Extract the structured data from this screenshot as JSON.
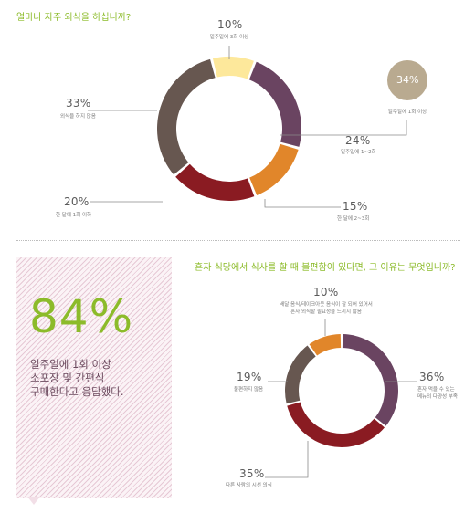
{
  "colors": {
    "purple": "#6a4461",
    "brown": "#675750",
    "darkred": "#8a1b22",
    "orange": "#e1862a",
    "yellow": "#fde89b",
    "olive": "#b9aa90",
    "green": "#8cbb2a"
  },
  "chart_data": [
    {
      "type": "pie",
      "title": "얼마나 자주 외식을 하십니까?",
      "slices": [
        {
          "value": 24,
          "label": "24%",
          "desc": "일주일에 1~2회",
          "color": "#6a4461"
        },
        {
          "value": 15,
          "label": "15%",
          "desc": "한 달에 2~3회",
          "color": "#e1862a"
        },
        {
          "value": 20,
          "label": "20%",
          "desc": "한 달에 1회 이하",
          "color": "#8a1b22"
        },
        {
          "value": 33,
          "label": "33%",
          "desc": "외식을 하지 않음",
          "color": "#675750"
        },
        {
          "value": 10,
          "label": "10%",
          "desc": "일주일에 3회 이상",
          "color": "#fde89b"
        }
      ],
      "callout": {
        "label": "34%",
        "desc": "일주일에 1회 이상"
      }
    },
    {
      "type": "pie",
      "title": "혼자 식당에서 식사를 할 때 불편함이 있다면, 그 이유는 무엇입니까?",
      "slices": [
        {
          "value": 36,
          "label": "36%",
          "desc": "혼자 먹을 수 있는\n메뉴의 다양성 부족",
          "color": "#6a4461"
        },
        {
          "value": 35,
          "label": "35%",
          "desc": "다른 사람의 시선 의식",
          "color": "#8a1b22"
        },
        {
          "value": 19,
          "label": "19%",
          "desc": "불편하지 않음",
          "color": "#675750"
        },
        {
          "value": 10,
          "label": "10%",
          "desc": "배달 음식/테이크아웃 음식이 잘 되어 있어서\n혼자 외식할 필요성을 느끼지 않음",
          "color": "#e1862a"
        }
      ]
    }
  ],
  "highlight": {
    "value": "84%",
    "text": "일주일에 1회 이상\n소포장 및 간편식\n구매한다고 응답했다."
  }
}
